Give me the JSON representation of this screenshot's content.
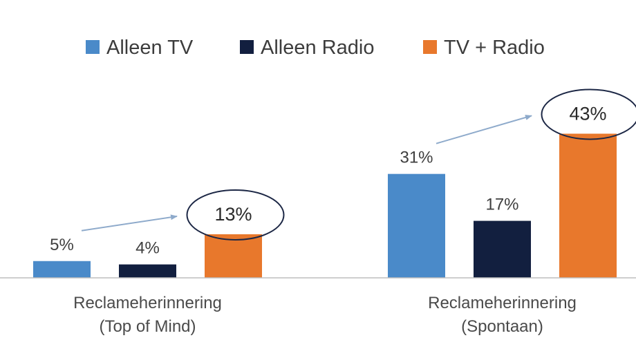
{
  "chart_data": {
    "type": "bar",
    "categories": [
      [
        "Reclameherinnering",
        "(Top of Mind)"
      ],
      [
        "Reclameherinnering",
        "(Spontaan)"
      ]
    ],
    "series": [
      {
        "name": "Alleen TV",
        "color": "#4a8ac9",
        "values": [
          5,
          31
        ],
        "labels": [
          "5%",
          "31%"
        ]
      },
      {
        "name": "Alleen Radio",
        "color": "#121f3f",
        "values": [
          4,
          17
        ],
        "labels": [
          "4%",
          "17%"
        ]
      },
      {
        "name": "TV + Radio",
        "color": "#e8782c",
        "values": [
          13,
          43
        ],
        "labels": [
          "13%",
          "43%"
        ]
      }
    ],
    "highlighted_series": "TV + Radio",
    "annotations": "arrow from Alleen TV to circled TV + Radio value in each group",
    "ylim": [
      0,
      50
    ],
    "grid": false,
    "legend_position": "top",
    "title": "",
    "xlabel": "",
    "ylabel": ""
  }
}
